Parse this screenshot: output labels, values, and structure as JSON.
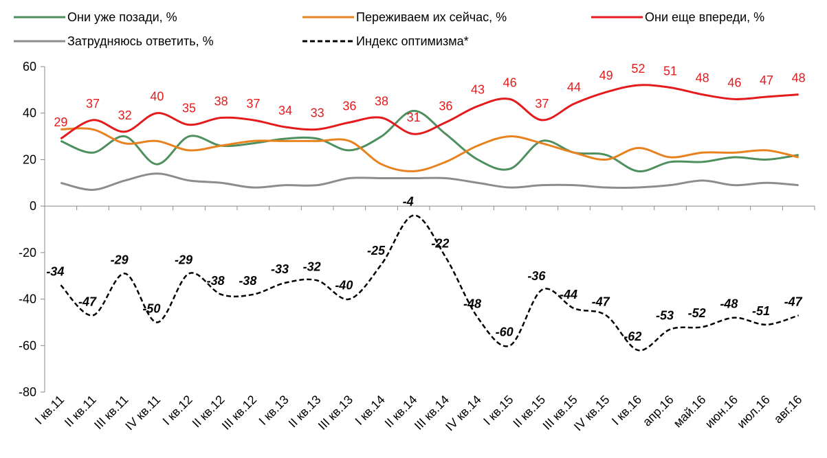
{
  "chart_data": {
    "type": "line",
    "categories": [
      "I кв.11",
      "II кв.11",
      "III кв.11",
      "IV кв.11",
      "I кв.12",
      "II кв.12",
      "III кв.12",
      "I кв.13",
      "II кв.13",
      "III кв.13",
      "I кв.14",
      "II кв.14",
      "III кв.14",
      "IV кв.14",
      "I кв.15",
      "II кв.15",
      "III кв.15",
      "IV кв.15",
      "I кв.16",
      "апр.16",
      "май.16",
      "июн.16",
      "июл.16",
      "авг.16"
    ],
    "series": [
      {
        "name": "Они уже позади, %",
        "color": "#4e8f5e",
        "values": [
          28,
          23,
          30,
          18,
          30,
          26,
          27,
          29,
          29,
          24,
          30,
          41,
          31,
          20,
          16,
          28,
          23,
          22,
          15,
          19,
          19,
          21,
          20,
          22
        ]
      },
      {
        "name": "Переживаем их сейчас, %",
        "color": "#e8821e",
        "values": [
          33,
          33,
          27,
          28,
          24,
          26,
          28,
          28,
          28,
          28,
          18,
          15,
          19,
          26,
          30,
          27,
          23,
          20,
          25,
          21,
          23,
          23,
          24,
          21
        ]
      },
      {
        "name": "Они еще впереди, %",
        "color": "#e41a1c",
        "values": [
          29,
          37,
          32,
          40,
          35,
          38,
          37,
          34,
          33,
          36,
          38,
          31,
          36,
          43,
          46,
          37,
          44,
          49,
          52,
          51,
          48,
          46,
          47,
          48
        ],
        "labels": true
      },
      {
        "name": "Затрудняюсь ответить, %",
        "color": "#8c8c8c",
        "values": [
          10,
          7,
          11,
          14,
          11,
          10,
          8,
          9,
          9,
          12,
          12,
          12,
          12,
          10,
          8,
          9,
          9,
          8,
          8,
          9,
          11,
          9,
          10,
          9
        ]
      },
      {
        "name": "Индекс оптимизма*",
        "color": "#000000",
        "dash": true,
        "values": [
          -34,
          -47,
          -29,
          -50,
          -29,
          -38,
          -38,
          -33,
          -32,
          -40,
          -25,
          -4,
          -22,
          -48,
          -60,
          -36,
          -44,
          -47,
          -62,
          -53,
          -52,
          -48,
          -51,
          -47
        ],
        "labels": true
      }
    ],
    "ylim": [
      -80,
      60
    ],
    "yticks": [
      -80,
      -60,
      -40,
      -20,
      0,
      20,
      40,
      60
    ]
  }
}
